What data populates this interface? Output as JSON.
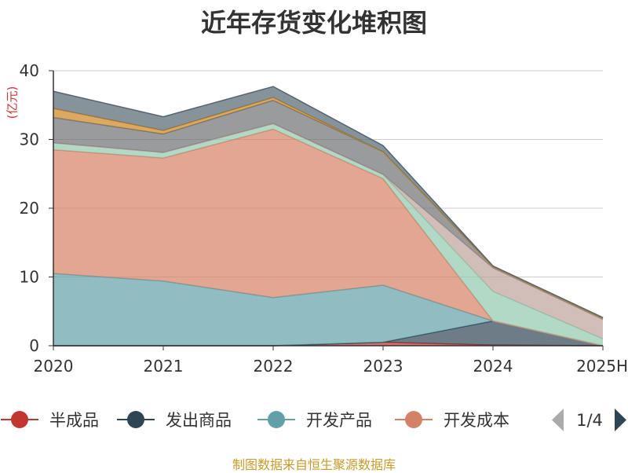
{
  "chart_data": {
    "type": "area",
    "stacked": true,
    "title": "近年存货变化堆积图",
    "unit_label": "(亿元)",
    "categories": [
      "2020",
      "2021",
      "2022",
      "2023",
      "2024",
      "2025H"
    ],
    "ylim": [
      0,
      40
    ],
    "yticks": [
      0,
      10,
      20,
      30,
      40
    ],
    "grid": true,
    "series": [
      {
        "name": "半成品",
        "color": "#c23531",
        "values": [
          0.0,
          0.0,
          0.0,
          0.5,
          0.1,
          0.0
        ]
      },
      {
        "name": "发出商品",
        "color": "#2f4554",
        "values": [
          0.0,
          0.0,
          0.0,
          0.0,
          3.5,
          0.0
        ]
      },
      {
        "name": "开发产品",
        "color": "#61a0a8",
        "values": [
          10.5,
          9.4,
          7.0,
          8.3,
          0.0,
          0.0
        ]
      },
      {
        "name": "开发成本",
        "color": "#d48265",
        "values": [
          18.0,
          17.9,
          24.5,
          15.5,
          0.0,
          0.0
        ]
      },
      {
        "color": "#91c7ae",
        "values": [
          1.0,
          0.8,
          0.8,
          0.6,
          4.3,
          1.0
        ]
      },
      {
        "color": "#bda29a",
        "values": [
          0.0,
          0.0,
          0.0,
          0.0,
          3.4,
          2.8
        ]
      },
      {
        "color": "#6e7074",
        "values": [
          3.7,
          2.7,
          3.4,
          3.3,
          0.2,
          0.2
        ]
      },
      {
        "color": "#ca8622",
        "values": [
          1.3,
          0.5,
          0.4,
          0.0,
          0.0,
          0.0
        ]
      },
      {
        "color": "#546570",
        "values": [
          2.5,
          2.0,
          1.6,
          0.9,
          0.1,
          0.1
        ]
      }
    ]
  },
  "legend": {
    "items": [
      "半成品",
      "发出商品",
      "开发产品",
      "开发成本"
    ],
    "page": "1/4"
  },
  "footer": {
    "source": "制图数据来自恒生聚源数据库"
  }
}
